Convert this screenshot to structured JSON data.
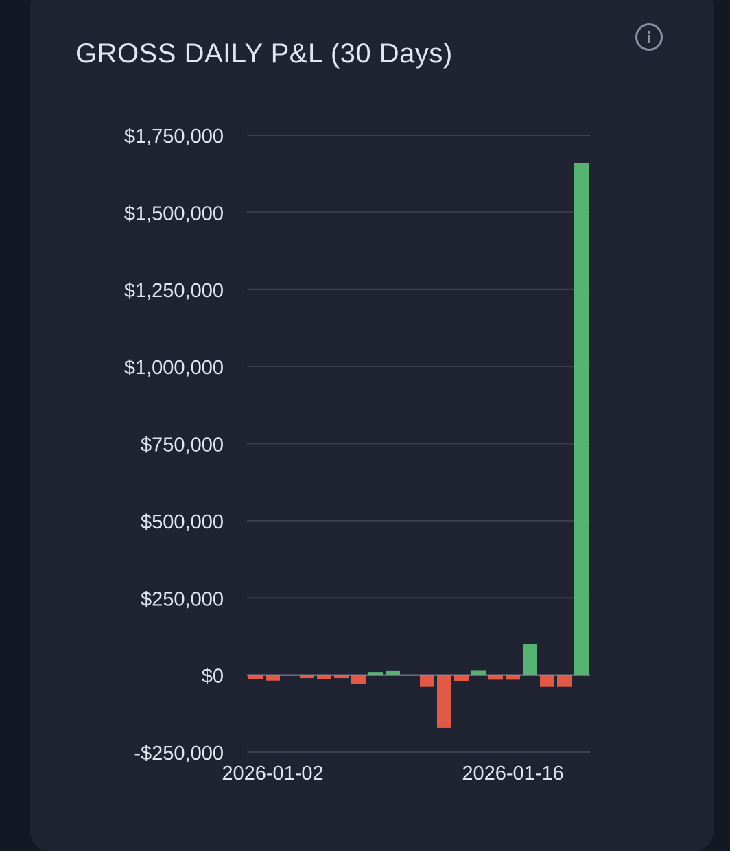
{
  "card": {
    "title": "GROSS DAILY P&L (30 Days)",
    "info_icon": "info-icon"
  },
  "colors": {
    "background": "#131825",
    "card": "#1f2332",
    "gridline": "#3a3f52",
    "positive": "#57b372",
    "negative": "#e05a47",
    "text": "#e3e6ee"
  },
  "chart_data": {
    "type": "bar",
    "title": "GROSS DAILY P&L (30 Days)",
    "ylim": [
      -250000,
      1750000
    ],
    "yticks": [
      1750000,
      1500000,
      1250000,
      1000000,
      750000,
      500000,
      250000,
      0,
      -250000
    ],
    "ytick_labels": [
      "$1,750,000",
      "$1,500,000",
      "$1,250,000",
      "$1,000,000",
      "$750,000",
      "$500,000",
      "$250,000",
      "$0",
      "-$250,000"
    ],
    "x_tick_labels": [
      {
        "date": "2026-01-02",
        "label": "2026-01-02"
      },
      {
        "date": "2026-01-16",
        "label": "2026-01-16"
      }
    ],
    "x": [
      "2026-01-01",
      "2026-01-02",
      "2026-01-03",
      "2026-01-04",
      "2026-01-05",
      "2026-01-06",
      "2026-01-07",
      "2026-01-08",
      "2026-01-09",
      "2026-01-10",
      "2026-01-11",
      "2026-01-12",
      "2026-01-13",
      "2026-01-14",
      "2026-01-15",
      "2026-01-16",
      "2026-01-17",
      "2026-01-18",
      "2026-01-19",
      "2026-01-20"
    ],
    "values": [
      -12000,
      -18000,
      0,
      -10000,
      -12000,
      -10000,
      -28000,
      10000,
      15000,
      0,
      -38000,
      -172000,
      -20000,
      16000,
      -15000,
      -15000,
      100000,
      -38000,
      -38000,
      1660000
    ],
    "grid": true,
    "legend": "none",
    "positive_color": "#57b372",
    "negative_color": "#e05a47"
  }
}
